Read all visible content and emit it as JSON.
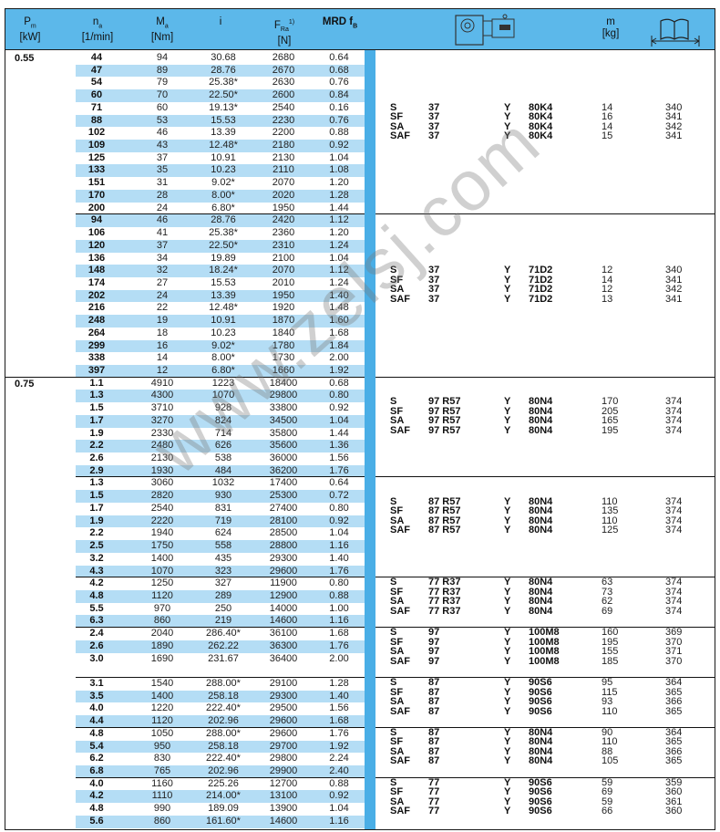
{
  "header": {
    "pm": {
      "main": "P",
      "sub": "m",
      "unit": "[kW]"
    },
    "na": {
      "main": "n",
      "sub": "a",
      "unit": "[1/min]"
    },
    "ma": {
      "main": "M",
      "sub": "a",
      "unit": "[Nm]"
    },
    "i": {
      "main": "i"
    },
    "fra": {
      "main": "F",
      "sub": "Ra",
      "sup": "1)",
      "unit": "[N]"
    },
    "mrd": {
      "main": "MRD f",
      "sub": "B"
    },
    "motor_icon": "gearmotor-icon",
    "m": {
      "main": "m",
      "unit": "[kg]"
    },
    "page_icon": "catalog-page-icon"
  },
  "colors": {
    "header": "#5cb8ea",
    "stripe": "#b4ddf5",
    "bar": "#4aaee6"
  },
  "watermark": "www.zelsj.com",
  "powers": [
    {
      "pm": "0.55",
      "groups": [
        {
          "rows": [
            [
              "44",
              "94",
              "30.68",
              "2680",
              "0.64"
            ],
            [
              "47",
              "89",
              "28.76",
              "2670",
              "0.68"
            ],
            [
              "54",
              "79",
              "25.38*",
              "2630",
              "0.76"
            ],
            [
              "60",
              "70",
              "22.50*",
              "2600",
              "0.84"
            ],
            [
              "71",
              "60",
              "19.13*",
              "2540",
              "0.16"
            ],
            [
              "88",
              "53",
              "15.53",
              "2230",
              "0.76"
            ],
            [
              "102",
              "46",
              "13.39",
              "2200",
              "0.88"
            ],
            [
              "109",
              "43",
              "12.48*",
              "2180",
              "0.92"
            ],
            [
              "125",
              "37",
              "10.91",
              "2130",
              "1.04"
            ],
            [
              "133",
              "35",
              "10.23",
              "2110",
              "1.08"
            ],
            [
              "151",
              "31",
              "9.02*",
              "2070",
              "1.20"
            ],
            [
              "170",
              "28",
              "8.00*",
              "2020",
              "1.28"
            ],
            [
              "200",
              "24",
              "6.80*",
              "1950",
              "1.44"
            ]
          ],
          "variants": [
            [
              "S",
              "37",
              "Y",
              "80K4",
              "14",
              "340"
            ],
            [
              "SF",
              "37",
              "Y",
              "80K4",
              "16",
              "341"
            ],
            [
              "SA",
              "37",
              "Y",
              "80K4",
              "14",
              "342"
            ],
            [
              "SAF",
              "37",
              "Y",
              "80K4",
              "15",
              "341"
            ]
          ]
        },
        {
          "rows": [
            [
              "94",
              "46",
              "28.76",
              "2420",
              "1.12"
            ],
            [
              "106",
              "41",
              "25.38*",
              "2360",
              "1.20"
            ],
            [
              "120",
              "37",
              "22.50*",
              "2310",
              "1.24"
            ],
            [
              "136",
              "34",
              "19.89",
              "2100",
              "1.04"
            ],
            [
              "148",
              "32",
              "18.24*",
              "2070",
              "1.12"
            ],
            [
              "174",
              "27",
              "15.53",
              "2010",
              "1.24"
            ],
            [
              "202",
              "24",
              "13.39",
              "1950",
              "1.40"
            ],
            [
              "216",
              "22",
              "12.48*",
              "1920",
              "1.48"
            ],
            [
              "248",
              "19",
              "10.91",
              "1870",
              "1.60"
            ],
            [
              "264",
              "18",
              "10.23",
              "1840",
              "1.68"
            ],
            [
              "299",
              "16",
              "9.02*",
              "1780",
              "1.84"
            ],
            [
              "338",
              "14",
              "8.00*",
              "1730",
              "2.00"
            ],
            [
              "397",
              "12",
              "6.80*",
              "1660",
              "1.92"
            ]
          ],
          "variants": [
            [
              "S",
              "37",
              "Y",
              "71D2",
              "12",
              "340"
            ],
            [
              "SF",
              "37",
              "Y",
              "71D2",
              "14",
              "341"
            ],
            [
              "SA",
              "37",
              "Y",
              "71D2",
              "12",
              "342"
            ],
            [
              "SAF",
              "37",
              "Y",
              "71D2",
              "13",
              "341"
            ]
          ]
        }
      ]
    },
    {
      "pm": "0.75",
      "groups": [
        {
          "rows": [
            [
              "1.1",
              "4910",
              "1223",
              "18400",
              "0.68"
            ],
            [
              "1.3",
              "4300",
              "1070",
              "29800",
              "0.80"
            ],
            [
              "1.5",
              "3710",
              "928",
              "33800",
              "0.92"
            ],
            [
              "1.7",
              "3270",
              "824",
              "34500",
              "1.04"
            ],
            [
              "1.9",
              "2330",
              "714",
              "35800",
              "1.44"
            ],
            [
              "2.2",
              "2480",
              "626",
              "35600",
              "1.36"
            ],
            [
              "2.6",
              "2130",
              "538",
              "36000",
              "1.56"
            ],
            [
              "2.9",
              "1930",
              "484",
              "36200",
              "1.76"
            ]
          ],
          "variants": [
            [
              "S",
              "97 R57",
              "Y",
              "80N4",
              "170",
              "374"
            ],
            [
              "SF",
              "97 R57",
              "Y",
              "80N4",
              "205",
              "374"
            ],
            [
              "SA",
              "97 R57",
              "Y",
              "80N4",
              "165",
              "374"
            ],
            [
              "SAF",
              "97 R57",
              "Y",
              "80N4",
              "195",
              "374"
            ]
          ]
        },
        {
          "rows": [
            [
              "1.3",
              "3060",
              "1032",
              "17400",
              "0.64"
            ],
            [
              "1.5",
              "2820",
              "930",
              "25300",
              "0.72"
            ],
            [
              "1.7",
              "2540",
              "831",
              "27400",
              "0.80"
            ],
            [
              "1.9",
              "2220",
              "719",
              "28100",
              "0.92"
            ],
            [
              "2.2",
              "1940",
              "624",
              "28500",
              "1.04"
            ],
            [
              "2.5",
              "1750",
              "558",
              "28800",
              "1.16"
            ],
            [
              "3.2",
              "1400",
              "435",
              "29300",
              "1.40"
            ],
            [
              "4.3",
              "1070",
              "323",
              "29600",
              "1.76"
            ]
          ],
          "variants": [
            [
              "S",
              "87 R57",
              "Y",
              "80N4",
              "110",
              "374"
            ],
            [
              "SF",
              "87 R57",
              "Y",
              "80N4",
              "135",
              "374"
            ],
            [
              "SA",
              "87 R57",
              "Y",
              "80N4",
              "110",
              "374"
            ],
            [
              "SAF",
              "87 R57",
              "Y",
              "80N4",
              "125",
              "374"
            ]
          ]
        },
        {
          "rows": [
            [
              "4.2",
              "1250",
              "327",
              "11900",
              "0.80"
            ],
            [
              "4.8",
              "1120",
              "289",
              "12900",
              "0.88"
            ],
            [
              "5.5",
              "970",
              "250",
              "14000",
              "1.00"
            ],
            [
              "6.3",
              "860",
              "219",
              "14600",
              "1.16"
            ]
          ],
          "variants": [
            [
              "S",
              "77 R37",
              "Y",
              "80N4",
              "63",
              "374"
            ],
            [
              "SF",
              "77 R37",
              "Y",
              "80N4",
              "73",
              "374"
            ],
            [
              "SA",
              "77 R37",
              "Y",
              "80N4",
              "62",
              "374"
            ],
            [
              "SAF",
              "77 R37",
              "Y",
              "80N4",
              "69",
              "374"
            ]
          ]
        },
        {
          "rows": [
            [
              "2.4",
              "2040",
              "286.40*",
              "36100",
              "1.68"
            ],
            [
              "2.6",
              "1890",
              "262.22",
              "36300",
              "1.76"
            ],
            [
              "3.0",
              "1690",
              "231.67",
              "36400",
              "2.00"
            ]
          ],
          "variants": [
            [
              "S",
              "97",
              "Y",
              "100M8",
              "160",
              "369"
            ],
            [
              "SF",
              "97",
              "Y",
              "100M8",
              "195",
              "370"
            ],
            [
              "SA",
              "97",
              "Y",
              "100M8",
              "155",
              "371"
            ],
            [
              "SAF",
              "97",
              "Y",
              "100M8",
              "185",
              "370"
            ]
          ]
        },
        {
          "rows": [
            [
              "3.1",
              "1540",
              "288.00*",
              "29100",
              "1.28"
            ],
            [
              "3.5",
              "1400",
              "258.18",
              "29300",
              "1.40"
            ],
            [
              "4.0",
              "1220",
              "222.40*",
              "29500",
              "1.56"
            ],
            [
              "4.4",
              "1120",
              "202.96",
              "29600",
              "1.68"
            ]
          ],
          "variants": [
            [
              "S",
              "87",
              "Y",
              "90S6",
              "95",
              "364"
            ],
            [
              "SF",
              "87",
              "Y",
              "90S6",
              "115",
              "365"
            ],
            [
              "SA",
              "87",
              "Y",
              "90S6",
              "93",
              "366"
            ],
            [
              "SAF",
              "87",
              "Y",
              "90S6",
              "110",
              "365"
            ]
          ]
        },
        {
          "rows": [
            [
              "4.8",
              "1050",
              "288.00*",
              "29600",
              "1.76"
            ],
            [
              "5.4",
              "950",
              "258.18",
              "29700",
              "1.92"
            ],
            [
              "6.2",
              "830",
              "222.40*",
              "29800",
              "2.24"
            ],
            [
              "6.8",
              "765",
              "202.96",
              "29900",
              "2.40"
            ]
          ],
          "variants": [
            [
              "S",
              "87",
              "Y",
              "80N4",
              "90",
              "364"
            ],
            [
              "SF",
              "87",
              "Y",
              "80N4",
              "110",
              "365"
            ],
            [
              "SA",
              "87",
              "Y",
              "80N4",
              "88",
              "366"
            ],
            [
              "SAF",
              "87",
              "Y",
              "80N4",
              "105",
              "365"
            ]
          ]
        },
        {
          "rows": [
            [
              "4.0",
              "1160",
              "225.26",
              "12700",
              "0.88"
            ],
            [
              "4.2",
              "1110",
              "214.00*",
              "13100",
              "0.92"
            ],
            [
              "4.8",
              "990",
              "189.09",
              "13900",
              "1.04"
            ],
            [
              "5.6",
              "860",
              "161.60*",
              "14600",
              "1.16"
            ]
          ],
          "variants": [
            [
              "S",
              "77",
              "Y",
              "90S6",
              "59",
              "359"
            ],
            [
              "SF",
              "77",
              "Y",
              "90S6",
              "69",
              "360"
            ],
            [
              "SA",
              "77",
              "Y",
              "90S6",
              "59",
              "361"
            ],
            [
              "SAF",
              "77",
              "Y",
              "90S6",
              "66",
              "360"
            ]
          ]
        }
      ]
    }
  ]
}
